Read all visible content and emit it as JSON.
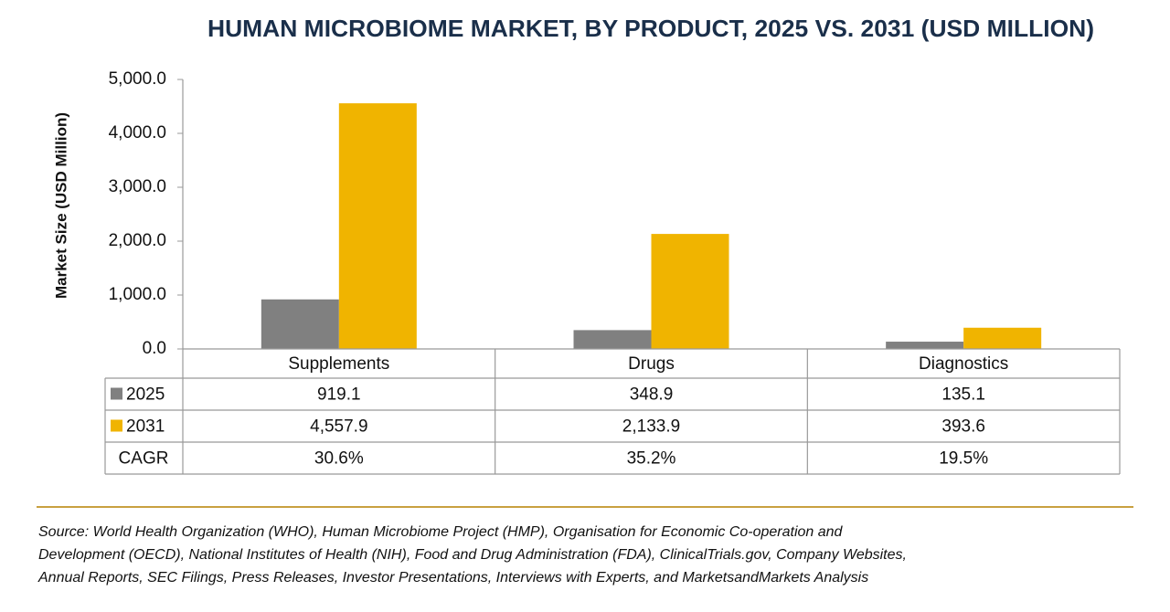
{
  "chart_data": {
    "type": "bar",
    "title": "HUMAN MICROBIOME MARKET, BY PRODUCT, 2025 VS. 2031 (USD MILLION)",
    "y_label": "Market Size (USD Million)",
    "categories": [
      "Supplements",
      "Drugs",
      "Diagnostics"
    ],
    "series": [
      {
        "name": "2025",
        "color": "#808080",
        "values": [
          919.1,
          348.9,
          135.1
        ],
        "value_labels": [
          "919.1",
          "348.9",
          "135.1"
        ]
      },
      {
        "name": "2031",
        "color": "#f0b400",
        "values": [
          4557.9,
          2133.9,
          393.6
        ],
        "value_labels": [
          "4,557.9",
          "2,133.9",
          "393.6"
        ]
      }
    ],
    "ylim": [
      0,
      5000
    ],
    "yticks": [
      {
        "value": 0,
        "label": "0.0"
      },
      {
        "value": 1000,
        "label": "1,000.0"
      },
      {
        "value": 2000,
        "label": "2,000.0"
      },
      {
        "value": 3000,
        "label": "3,000.0"
      },
      {
        "value": 4000,
        "label": "4,000.0"
      },
      {
        "value": 5000,
        "label": "5,000.0"
      }
    ],
    "cagr_label": "CAGR",
    "cagr": [
      "30.6%",
      "35.2%",
      "19.5%"
    ],
    "source": [
      "Source: World Health Organization (WHO), Human Microbiome Project (HMP), Organisation for Economic Co-operation and",
      "Development (OECD), National Institutes of Health (NIH), Food and Drug Administration (FDA), ClinicalTrials.gov, Company Websites,",
      "Annual Reports, SEC Filings, Press Releases, Investor Presentations, Interviews with Experts, and MarketsandMarkets Analysis"
    ]
  }
}
